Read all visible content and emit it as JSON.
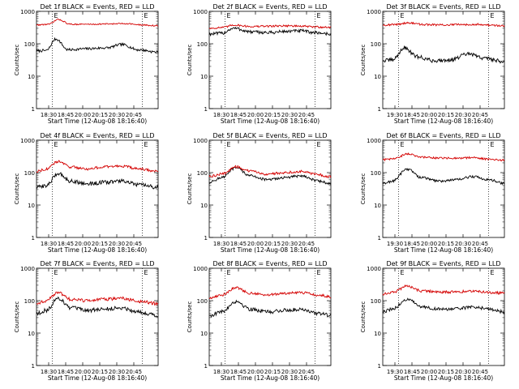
{
  "chart_data": [
    {
      "type": "line",
      "title": "Det 1f BLACK = Events, RED = LLD",
      "xlabel": "Start Time (12-Aug-08 18:16:40)",
      "ylabel": "Counts/sec",
      "yscale": "log",
      "ylim": [
        1,
        1000
      ],
      "yticks": [
        "1",
        "10",
        "100",
        "1000"
      ],
      "xticks": [
        "18:30",
        "18:45",
        "20:00",
        "20:15",
        "20:30",
        "20:45"
      ],
      "marker_labels": [
        "E",
        "E"
      ],
      "series": [
        {
          "color": "#000000",
          "knots": [
            [
              0,
              60
            ],
            [
              8,
              62
            ],
            [
              16,
              140
            ],
            [
              26,
              65
            ],
            [
              40,
              70
            ],
            [
              58,
              75
            ],
            [
              70,
              95
            ],
            [
              84,
              65
            ],
            [
              100,
              55
            ]
          ],
          "noise": 0.04
        },
        {
          "color": "#d40000",
          "knots": [
            [
              0,
              380
            ],
            [
              10,
              400
            ],
            [
              18,
              560
            ],
            [
              28,
              400
            ],
            [
              45,
              400
            ],
            [
              60,
              410
            ],
            [
              74,
              420
            ],
            [
              86,
              380
            ],
            [
              100,
              360
            ]
          ],
          "noise": 0.02
        }
      ]
    },
    {
      "type": "line",
      "title": "Det 2f BLACK = Events, RED = LLD",
      "xlabel": "Start Time (12-Aug-08 18:16:40)",
      "ylabel": "Counts/sec",
      "yscale": "log",
      "ylim": [
        1,
        1000
      ],
      "yticks": [
        "1",
        "10",
        "100",
        "1000"
      ],
      "xticks": [
        "18:30",
        "18:45",
        "20:00",
        "20:15",
        "20:30",
        "20:45"
      ],
      "marker_labels": [
        "E",
        "E"
      ],
      "series": [
        {
          "color": "#000000",
          "knots": [
            [
              0,
              200
            ],
            [
              10,
              210
            ],
            [
              20,
              300
            ],
            [
              35,
              230
            ],
            [
              50,
              220
            ],
            [
              62,
              240
            ],
            [
              75,
              250
            ],
            [
              88,
              220
            ],
            [
              100,
              200
            ]
          ],
          "noise": 0.05
        },
        {
          "color": "#d40000",
          "knots": [
            [
              0,
              300
            ],
            [
              12,
              320
            ],
            [
              20,
              380
            ],
            [
              35,
              340
            ],
            [
              50,
              350
            ],
            [
              62,
              360
            ],
            [
              75,
              350
            ],
            [
              88,
              330
            ],
            [
              100,
              320
            ]
          ],
          "noise": 0.03
        }
      ]
    },
    {
      "type": "line",
      "title": "Det 3f BLACK = Events, RED = LLD",
      "xlabel": "Start Time (12-Aug-08 18:16:40)",
      "ylabel": "Counts/sec",
      "yscale": "log",
      "ylim": [
        1,
        1000
      ],
      "yticks": [
        "1",
        "10",
        "100",
        "1000"
      ],
      "xticks": [
        "19:30",
        "18:45",
        "20:00",
        "20:15",
        "20:30",
        "20:45"
      ],
      "marker_labels": [
        "E",
        "E"
      ],
      "series": [
        {
          "color": "#000000",
          "knots": [
            [
              0,
              30
            ],
            [
              8,
              32
            ],
            [
              18,
              75
            ],
            [
              28,
              40
            ],
            [
              42,
              30
            ],
            [
              56,
              32
            ],
            [
              70,
              48
            ],
            [
              84,
              36
            ],
            [
              100,
              28
            ]
          ],
          "noise": 0.06
        },
        {
          "color": "#d40000",
          "knots": [
            [
              0,
              380
            ],
            [
              10,
              390
            ],
            [
              20,
              440
            ],
            [
              35,
              390
            ],
            [
              50,
              380
            ],
            [
              64,
              390
            ],
            [
              78,
              400
            ],
            [
              90,
              370
            ],
            [
              100,
              360
            ]
          ],
          "noise": 0.03
        }
      ]
    },
    {
      "type": "line",
      "title": "Det 4f BLACK = Events, RED = LLD",
      "xlabel": "Start Time (12-Aug-08 18:16:40)",
      "ylabel": "Counts/sec",
      "yscale": "log",
      "ylim": [
        1,
        1000
      ],
      "yticks": [
        "1",
        "10",
        "100",
        "1000"
      ],
      "xticks": [
        "18:30",
        "18:45",
        "20:00",
        "20:15",
        "20:30",
        "20:45"
      ],
      "marker_labels": [
        "E",
        "E"
      ],
      "series": [
        {
          "color": "#000000",
          "knots": [
            [
              0,
              35
            ],
            [
              8,
              40
            ],
            [
              18,
              95
            ],
            [
              28,
              55
            ],
            [
              42,
              45
            ],
            [
              56,
              50
            ],
            [
              70,
              55
            ],
            [
              84,
              42
            ],
            [
              100,
              35
            ]
          ],
          "noise": 0.06
        },
        {
          "color": "#d40000",
          "knots": [
            [
              0,
              110
            ],
            [
              8,
              130
            ],
            [
              18,
              220
            ],
            [
              28,
              150
            ],
            [
              42,
              130
            ],
            [
              56,
              150
            ],
            [
              70,
              160
            ],
            [
              84,
              130
            ],
            [
              100,
              110
            ]
          ],
          "noise": 0.04
        }
      ]
    },
    {
      "type": "line",
      "title": "Det 5f BLACK = Events, RED = LLD",
      "xlabel": "Start Time (12-Aug-08 18:16:40)",
      "ylabel": "Counts/sec",
      "yscale": "log",
      "ylim": [
        1,
        1000
      ],
      "yticks": [
        "1",
        "10",
        "100",
        "1000"
      ],
      "xticks": [
        "18:30",
        "18:45",
        "20:00",
        "20:15",
        "20:30",
        "20:45"
      ],
      "marker_labels": [
        "E",
        "E"
      ],
      "series": [
        {
          "color": "#000000",
          "knots": [
            [
              0,
              50
            ],
            [
              10,
              70
            ],
            [
              22,
              140
            ],
            [
              34,
              80
            ],
            [
              48,
              60
            ],
            [
              62,
              70
            ],
            [
              76,
              80
            ],
            [
              90,
              55
            ],
            [
              100,
              45
            ]
          ],
          "noise": 0.04
        },
        {
          "color": "#d40000",
          "knots": [
            [
              0,
              75
            ],
            [
              10,
              90
            ],
            [
              22,
              150
            ],
            [
              34,
              110
            ],
            [
              48,
              90
            ],
            [
              62,
              100
            ],
            [
              76,
              110
            ],
            [
              90,
              85
            ],
            [
              100,
              75
            ]
          ],
          "noise": 0.04
        }
      ]
    },
    {
      "type": "line",
      "title": "Det 6f BLACK = Events, RED = LLD",
      "xlabel": "Start Time (12-Aug-08 18:16:40)",
      "ylabel": "Counts/sec",
      "yscale": "log",
      "ylim": [
        1,
        1000
      ],
      "yticks": [
        "1",
        "10",
        "100",
        "1000"
      ],
      "xticks": [
        "19:30",
        "18:45",
        "20:00",
        "20:15",
        "20:30",
        "20:45"
      ],
      "marker_labels": [
        "E",
        "E"
      ],
      "series": [
        {
          "color": "#000000",
          "knots": [
            [
              0,
              45
            ],
            [
              8,
              55
            ],
            [
              20,
              130
            ],
            [
              32,
              70
            ],
            [
              46,
              55
            ],
            [
              60,
              60
            ],
            [
              74,
              75
            ],
            [
              88,
              60
            ],
            [
              100,
              45
            ]
          ],
          "noise": 0.04
        },
        {
          "color": "#d40000",
          "knots": [
            [
              0,
              250
            ],
            [
              10,
              270
            ],
            [
              20,
              380
            ],
            [
              32,
              300
            ],
            [
              46,
              280
            ],
            [
              60,
              280
            ],
            [
              74,
              290
            ],
            [
              88,
              260
            ],
            [
              100,
              240
            ]
          ],
          "noise": 0.03
        }
      ]
    },
    {
      "type": "line",
      "title": "Det 7f BLACK = Events, RED = LLD",
      "xlabel": "Start Time (12-Aug-08 18:16:40)",
      "ylabel": "Counts/sec",
      "yscale": "log",
      "ylim": [
        1,
        1000
      ],
      "yticks": [
        "1",
        "10",
        "100",
        "1000"
      ],
      "xticks": [
        "18:30",
        "18:45",
        "20:00",
        "20:15",
        "20:30",
        "20:45"
      ],
      "marker_labels": [
        "E",
        "E"
      ],
      "series": [
        {
          "color": "#000000",
          "knots": [
            [
              0,
              40
            ],
            [
              8,
              50
            ],
            [
              18,
              120
            ],
            [
              28,
              60
            ],
            [
              42,
              50
            ],
            [
              56,
              55
            ],
            [
              70,
              60
            ],
            [
              84,
              45
            ],
            [
              100,
              35
            ]
          ],
          "noise": 0.06
        },
        {
          "color": "#d40000",
          "knots": [
            [
              0,
              80
            ],
            [
              8,
              100
            ],
            [
              18,
              180
            ],
            [
              28,
              110
            ],
            [
              42,
              100
            ],
            [
              56,
              110
            ],
            [
              70,
              120
            ],
            [
              84,
              95
            ],
            [
              100,
              80
            ]
          ],
          "noise": 0.05
        }
      ]
    },
    {
      "type": "line",
      "title": "Det 8f BLACK = Events, RED = LLD",
      "xlabel": "Start Time (12-Aug-08 18:16:40)",
      "ylabel": "Counts/sec",
      "yscale": "log",
      "ylim": [
        1,
        1000
      ],
      "yticks": [
        "1",
        "10",
        "100",
        "1000"
      ],
      "xticks": [
        "18:30",
        "18:45",
        "20:00",
        "20:15",
        "20:30",
        "20:45"
      ],
      "marker_labels": [
        "E",
        "E"
      ],
      "series": [
        {
          "color": "#000000",
          "knots": [
            [
              0,
              35
            ],
            [
              10,
              45
            ],
            [
              22,
              95
            ],
            [
              34,
              55
            ],
            [
              48,
              45
            ],
            [
              62,
              50
            ],
            [
              76,
              55
            ],
            [
              90,
              40
            ],
            [
              100,
              35
            ]
          ],
          "noise": 0.06
        },
        {
          "color": "#d40000",
          "knots": [
            [
              0,
              120
            ],
            [
              10,
              150
            ],
            [
              22,
              250
            ],
            [
              34,
              170
            ],
            [
              48,
              150
            ],
            [
              62,
              170
            ],
            [
              76,
              175
            ],
            [
              90,
              150
            ],
            [
              100,
              130
            ]
          ],
          "noise": 0.04
        }
      ]
    },
    {
      "type": "line",
      "title": "Det 9f BLACK = Events, RED = LLD",
      "xlabel": "Start Time (12-Aug-08 18:16:40)",
      "ylabel": "Counts/sec",
      "yscale": "log",
      "ylim": [
        1,
        1000
      ],
      "yticks": [
        "1",
        "10",
        "100",
        "1000"
      ],
      "xticks": [
        "19:30",
        "18:45",
        "20:00",
        "20:15",
        "20:30",
        "20:45"
      ],
      "marker_labels": [
        "E",
        "E"
      ],
      "series": [
        {
          "color": "#000000",
          "knots": [
            [
              0,
              45
            ],
            [
              8,
              55
            ],
            [
              20,
              110
            ],
            [
              32,
              65
            ],
            [
              46,
              55
            ],
            [
              60,
              55
            ],
            [
              74,
              65
            ],
            [
              88,
              55
            ],
            [
              100,
              45
            ]
          ],
          "noise": 0.05
        },
        {
          "color": "#d40000",
          "knots": [
            [
              0,
              160
            ],
            [
              8,
              180
            ],
            [
              20,
              280
            ],
            [
              32,
              200
            ],
            [
              46,
              185
            ],
            [
              60,
              185
            ],
            [
              74,
              200
            ],
            [
              88,
              180
            ],
            [
              100,
              170
            ]
          ],
          "noise": 0.04
        }
      ]
    }
  ]
}
